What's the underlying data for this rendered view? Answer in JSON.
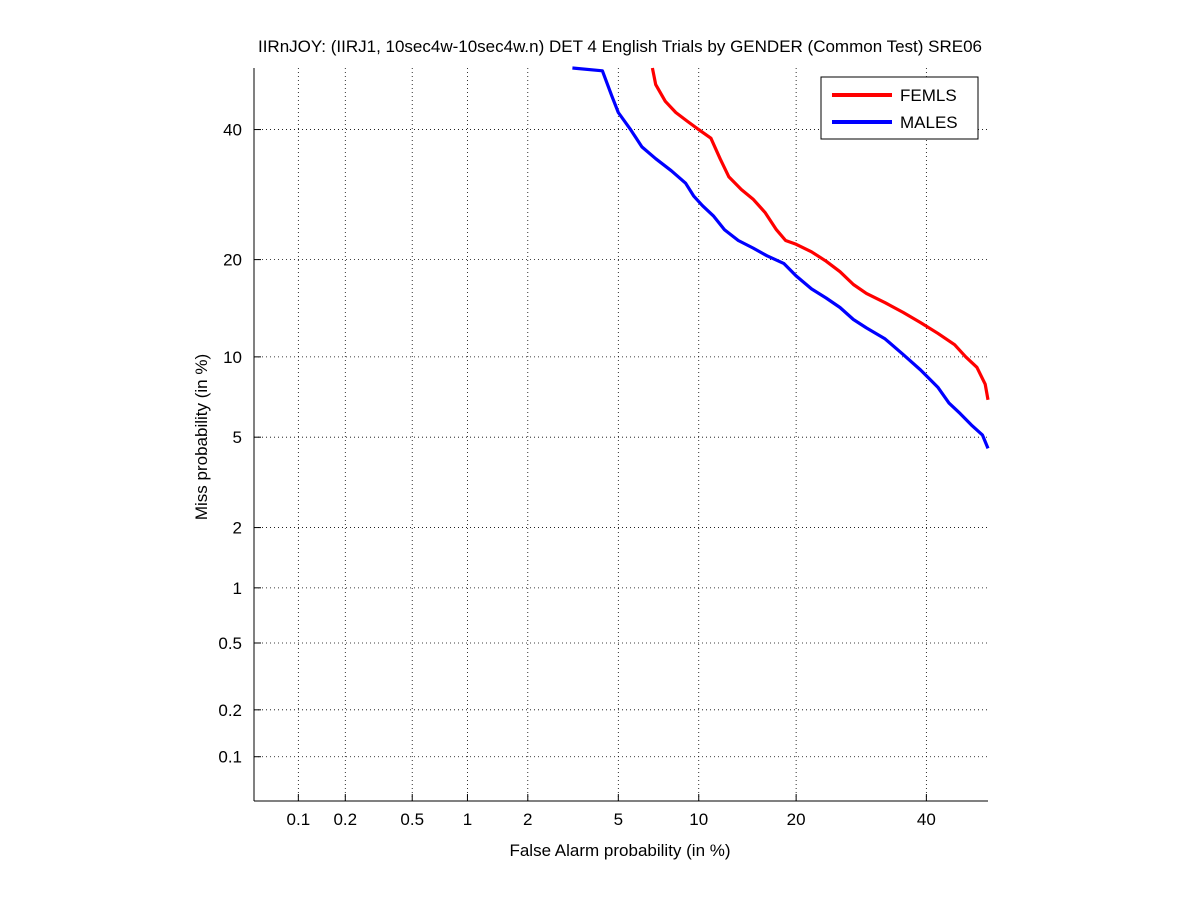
{
  "chart_data": {
    "type": "line",
    "title": "IIRnJOY: (IIRJ1, 10sec4w-10sec4w.n) DET 4 English Trials by GENDER (Common Test) SRE06",
    "xlabel": "False Alarm probability (in %)",
    "ylabel": "Miss probability (in %)",
    "x_scale": "normal-deviate (probit)",
    "y_scale": "normal-deviate (probit)",
    "xlim": [
      0.05,
      51
    ],
    "ylim": [
      0.05,
      51
    ],
    "x_ticks": [
      0.1,
      0.2,
      0.5,
      1,
      2,
      5,
      10,
      20,
      40
    ],
    "x_tick_labels": [
      "0.1",
      "0.2",
      "0.5",
      "1",
      "2",
      "5",
      "10",
      "20",
      "40"
    ],
    "y_ticks": [
      0.1,
      0.2,
      0.5,
      1,
      2,
      5,
      10,
      20,
      40
    ],
    "y_tick_labels": [
      "0.1",
      "0.2",
      "0.5",
      "1",
      "2",
      "5",
      "10",
      "20",
      "40"
    ],
    "grid": true,
    "legend_position": "top-right",
    "series": [
      {
        "name": "FEMLS",
        "color": "#ff0000",
        "points": [
          [
            6.8,
            51
          ],
          [
            7.0,
            48
          ],
          [
            7.6,
            45
          ],
          [
            8.3,
            43
          ],
          [
            9.1,
            41.5
          ],
          [
            10.0,
            40
          ],
          [
            11.0,
            38.5
          ],
          [
            11.8,
            35
          ],
          [
            12.6,
            32
          ],
          [
            13.8,
            30
          ],
          [
            15.0,
            28.5
          ],
          [
            16.3,
            26.5
          ],
          [
            17.6,
            24
          ],
          [
            18.7,
            22.5
          ],
          [
            20.0,
            22
          ],
          [
            22.0,
            21
          ],
          [
            24.0,
            19.8
          ],
          [
            26.0,
            18.5
          ],
          [
            28.0,
            17
          ],
          [
            30.0,
            16
          ],
          [
            33.0,
            15
          ],
          [
            36.0,
            14
          ],
          [
            39.0,
            13
          ],
          [
            42.0,
            12
          ],
          [
            45.0,
            11
          ],
          [
            47.0,
            10
          ],
          [
            49.0,
            9.2
          ],
          [
            50.5,
            8
          ],
          [
            51,
            7
          ]
        ]
      },
      {
        "name": "MALES",
        "color": "#0000ff",
        "points": [
          [
            3.2,
            51
          ],
          [
            4.3,
            50.5
          ],
          [
            4.7,
            46
          ],
          [
            5.0,
            43
          ],
          [
            5.6,
            40
          ],
          [
            6.2,
            37
          ],
          [
            7.0,
            35
          ],
          [
            8.0,
            33
          ],
          [
            9.0,
            31
          ],
          [
            9.6,
            29
          ],
          [
            10.3,
            27.5
          ],
          [
            11.2,
            26
          ],
          [
            12.2,
            24
          ],
          [
            13.5,
            22.5
          ],
          [
            15.0,
            21.5
          ],
          [
            16.5,
            20.5
          ],
          [
            18.5,
            19.5
          ],
          [
            20.0,
            18
          ],
          [
            22.0,
            16.5
          ],
          [
            24.0,
            15.5
          ],
          [
            26.0,
            14.5
          ],
          [
            28.0,
            13.3
          ],
          [
            30.0,
            12.5
          ],
          [
            33.0,
            11.5
          ],
          [
            36.0,
            10.2
          ],
          [
            39.0,
            9.0
          ],
          [
            42.0,
            7.8
          ],
          [
            44.0,
            6.8
          ],
          [
            46.0,
            6.2
          ],
          [
            48.0,
            5.6
          ],
          [
            50.0,
            5.1
          ],
          [
            51,
            4.5
          ]
        ]
      }
    ]
  }
}
